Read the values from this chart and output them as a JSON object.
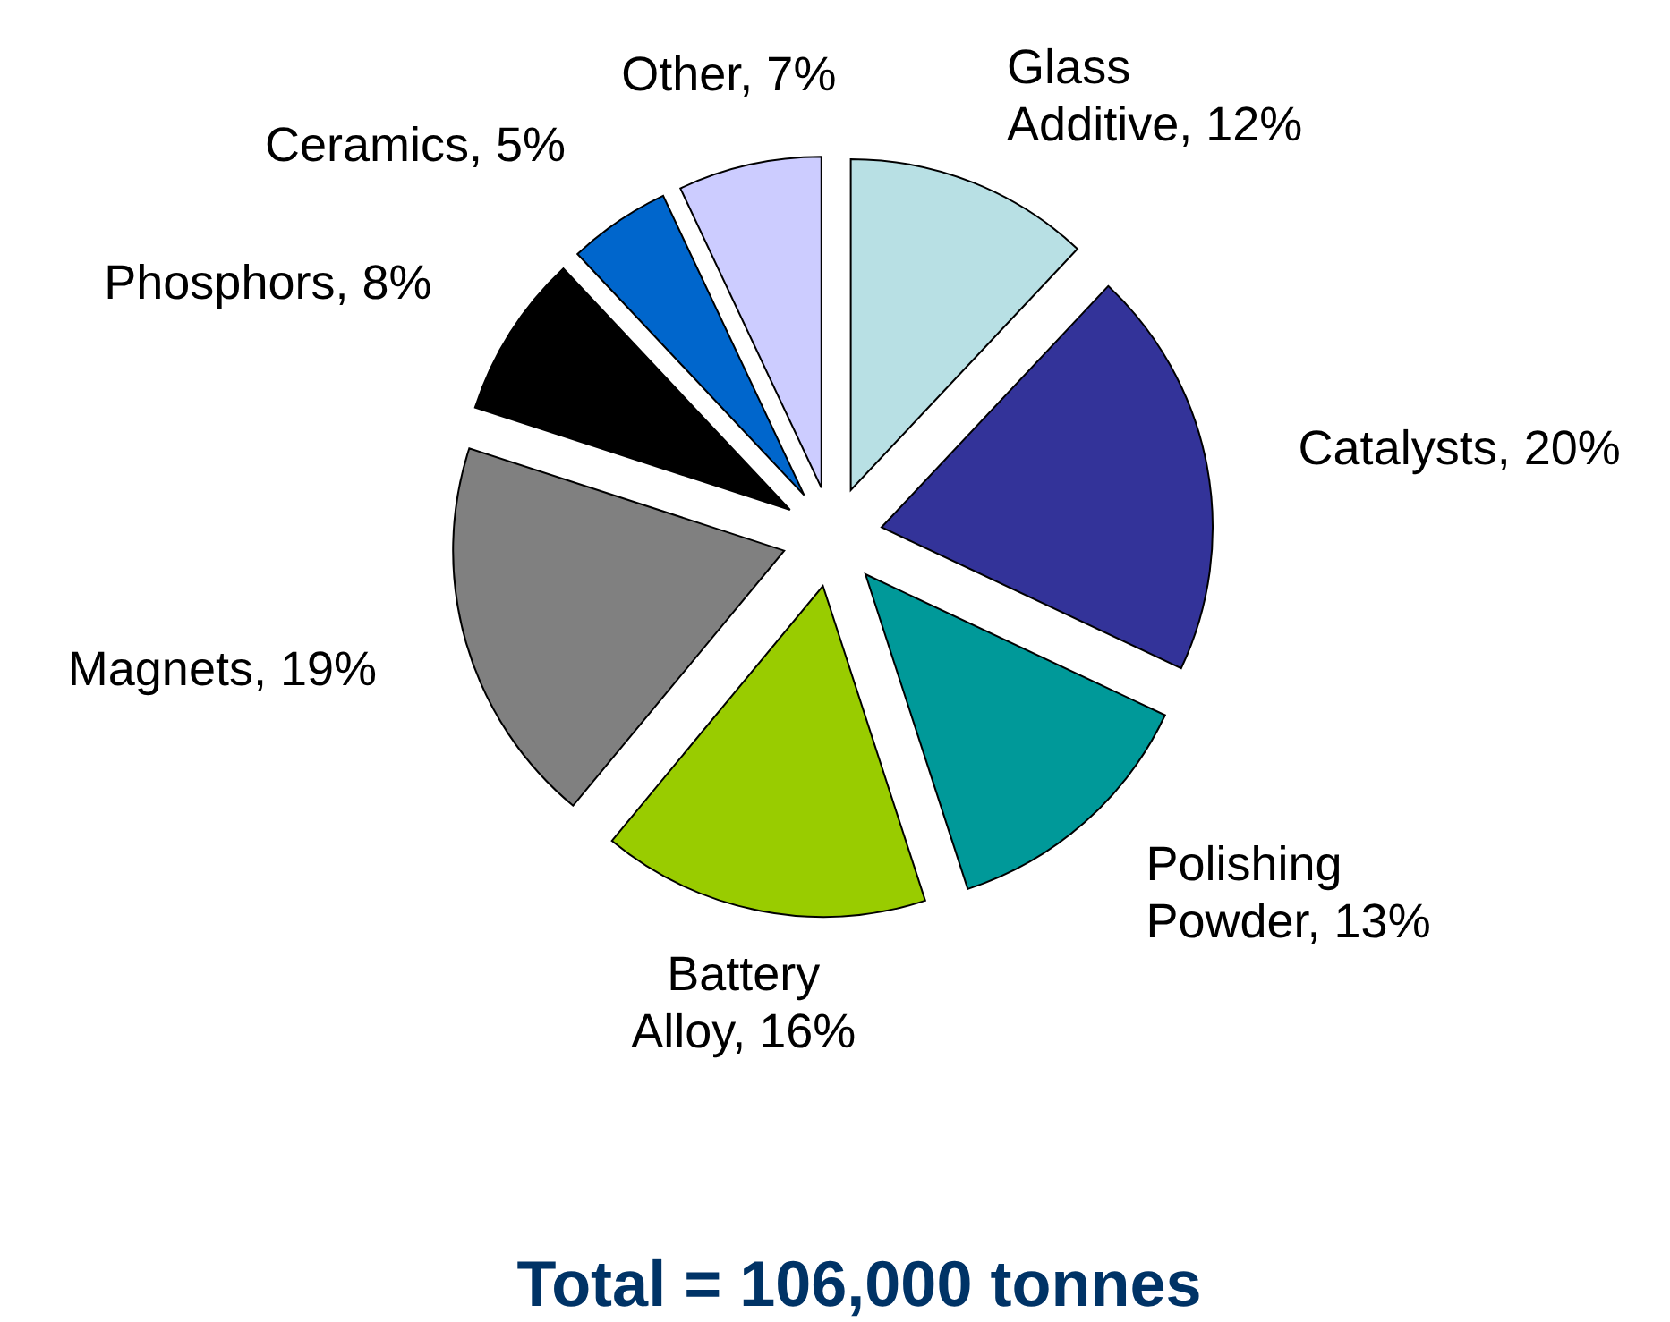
{
  "chart_data": {
    "type": "pie",
    "title": "Total = 106,000 tonnes",
    "categories": [
      "Glass Additive",
      "Catalysts",
      "Polishing Powder",
      "Battery Alloy",
      "Magnets",
      "Phosphors",
      "Ceramics",
      "Other"
    ],
    "values": [
      12,
      20,
      13,
      16,
      19,
      8,
      5,
      7
    ],
    "value_labels": [
      "12%",
      "20%",
      "13%",
      "16%",
      "19%",
      "8%",
      "5%",
      "7%"
    ],
    "colors": [
      "#b8e0e4",
      "#333399",
      "#009999",
      "#99cc00",
      "#808080",
      "#000000",
      "#0066cc",
      "#ccccff"
    ],
    "legend": false
  }
}
